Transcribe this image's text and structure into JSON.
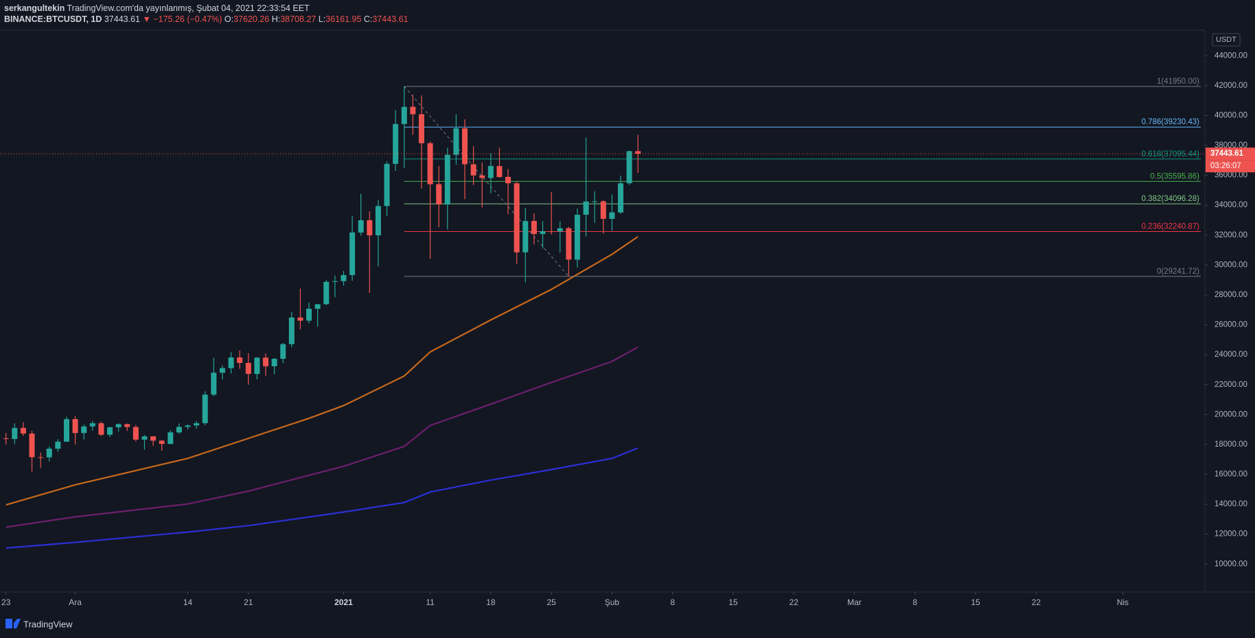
{
  "chart_data": {
    "type": "candlestick",
    "header": {
      "author": "serkangultekin",
      "published": "TradingView.com'da yayınlanmış, Şubat 04, 2021 22:33:54 EET",
      "symbol": "BINANCE:BTCUSDT, 1D",
      "change": "▼ −175.26 (−0.47%)",
      "open_label": "O:",
      "high_label": "H:",
      "low_label": "L:",
      "close_label": "C:"
    },
    "currency": "USDT",
    "countdown": "03:26:07",
    "brand": "TradingView",
    "up_color": "#26a69a",
    "down_color": "#ef5350",
    "categories": [
      "11-23",
      "11-24",
      "11-25",
      "11-26",
      "11-27",
      "11-28",
      "11-29",
      "11-30",
      "12-01",
      "12-02",
      "12-03",
      "12-04",
      "12-05",
      "12-06",
      "12-07",
      "12-08",
      "12-09",
      "12-10",
      "12-11",
      "12-12",
      "12-13",
      "12-14",
      "12-15",
      "12-16",
      "12-17",
      "12-18",
      "12-19",
      "12-20",
      "12-21",
      "12-22",
      "12-23",
      "12-24",
      "12-25",
      "12-26",
      "12-27",
      "12-28",
      "12-29",
      "12-30",
      "12-31",
      "01-01",
      "01-02",
      "01-03",
      "01-04",
      "01-05",
      "01-06",
      "01-07",
      "01-08",
      "01-09",
      "01-10",
      "01-11",
      "01-12",
      "01-13",
      "01-14",
      "01-15",
      "01-16",
      "01-17",
      "01-18",
      "01-19",
      "01-20",
      "01-21",
      "01-22",
      "01-23",
      "01-24",
      "01-25",
      "01-26",
      "01-27",
      "01-28",
      "01-29",
      "01-30",
      "01-31",
      "02-01",
      "02-02",
      "02-03",
      "02-04"
    ],
    "open": [
      18414,
      18364,
      19107,
      18729,
      17150,
      17139,
      17719,
      18185,
      19696,
      18764,
      19205,
      19422,
      18650,
      19148,
      19359,
      19166,
      18324,
      18541,
      18254,
      18036,
      18808,
      19175,
      19273,
      19426,
      21335,
      22797,
      23107,
      23821,
      23455,
      22719,
      23810,
      23232,
      23729,
      24712,
      26493,
      26281,
      27079,
      27385,
      28875,
      28923,
      29331,
      32176,
      33000,
      31989,
      33949,
      36769,
      39432,
      40586,
      40088,
      38150,
      35410,
      34049,
      37371,
      39145,
      36737,
      35995,
      35825,
      36622,
      35901,
      35468,
      30851,
      32950,
      32078,
      32259,
      32251,
      32464,
      30363,
      33368,
      34246,
      34262,
      33092,
      33518,
      35472,
      37620.26
    ],
    "high": [
      18773,
      19418,
      19484,
      18915,
      17457,
      17880,
      18360,
      19863,
      19888,
      19342,
      19566,
      19527,
      19177,
      19420,
      19400,
      19294,
      18639,
      18557,
      18292,
      18948,
      19411,
      19349,
      19570,
      21560,
      23800,
      23285,
      24171,
      24295,
      24102,
      23837,
      24100,
      23789,
      24789,
      26867,
      28422,
      27500,
      27380,
      28999,
      29300,
      29600,
      33300,
      34778,
      33600,
      34360,
      36939,
      40365,
      41950,
      41380,
      41350,
      38264,
      36628,
      37850,
      40100,
      39747,
      37950,
      36852,
      37469,
      37850,
      36415,
      35600,
      33826,
      33456,
      32944,
      34875,
      32921,
      32557,
      33783,
      38531,
      34933,
      34342,
      34717,
      35984,
      37662,
      38708.27
    ],
    "low": [
      18000,
      18018,
      18565,
      16188,
      16438,
      16865,
      17517,
      18185,
      18001,
      18330,
      18925,
      18565,
      18500,
      18857,
      18902,
      18200,
      17650,
      17911,
      17572,
      18020,
      18711,
      19000,
      19050,
      19278,
      21230,
      22350,
      22750,
      23060,
      22000,
      22353,
      22600,
      22703,
      23433,
      24500,
      25700,
      26101,
      25880,
      27320,
      27850,
      28624,
      28946,
      31963,
      28130,
      29900,
      33288,
      36300,
      36500,
      38720,
      35111,
      30420,
      32531,
      32380,
      36701,
      34408,
      35357,
      33850,
      34800,
      35844,
      33400,
      30071,
      28850,
      31390,
      31106,
      32053,
      30837,
      29241.72,
      29842,
      31915,
      32825,
      32114,
      32296,
      33418,
      35362,
      36161.95
    ],
    "close": [
      18364,
      19107,
      18732,
      17150,
      17139,
      17719,
      18185,
      19696,
      18764,
      19205,
      19422,
      18650,
      19148,
      19359,
      19166,
      18324,
      18541,
      18254,
      18036,
      18808,
      19175,
      19273,
      19426,
      21335,
      22797,
      23107,
      23821,
      23455,
      22719,
      23810,
      23232,
      23729,
      24712,
      26493,
      26281,
      27079,
      27385,
      28875,
      28923,
      29331,
      32178,
      33000,
      31988,
      33949,
      36769,
      39432,
      40582,
      40088,
      38150,
      35404,
      34051,
      37371,
      39144,
      36742,
      35994,
      35828,
      36631,
      35891,
      35468,
      30850,
      32945,
      32078,
      32259,
      32254,
      32467,
      30366,
      33364,
      34252,
      34262,
      33092,
      33526,
      35466,
      37618,
      37443.61
    ],
    "lines": [
      {
        "color": "#c8691c",
        "x": [
          "11-23",
          "12-01",
          "12-14",
          "12-21",
          "12-28",
          "01-01",
          "01-08",
          "01-11",
          "01-18",
          "01-25",
          "02-01",
          "02-04"
        ],
        "values": [
          13962,
          15300,
          17070,
          18410,
          19750,
          20600,
          22580,
          24190,
          26330,
          28370,
          30720,
          31900
        ]
      },
      {
        "color": "#6e1f6e",
        "x": [
          "11-23",
          "12-01",
          "12-14",
          "12-21",
          "01-01",
          "01-08",
          "01-11",
          "01-18",
          "01-25",
          "02-01",
          "02-04"
        ],
        "values": [
          12470,
          13160,
          14020,
          14880,
          16540,
          17870,
          19270,
          20700,
          22150,
          23550,
          24510
        ]
      },
      {
        "color": "#2b2fd6",
        "x": [
          "11-23",
          "12-01",
          "12-14",
          "12-21",
          "01-01",
          "01-08",
          "01-11",
          "01-18",
          "01-25",
          "02-01",
          "02-04"
        ],
        "values": [
          11070,
          11450,
          12140,
          12570,
          13480,
          14120,
          14820,
          15620,
          16320,
          17070,
          17760
        ]
      }
    ],
    "fib": {
      "from": "01-08",
      "to": "01-27",
      "levels": [
        {
          "price": 41950,
          "label": "1(41950.00)",
          "color": "#787b86"
        },
        {
          "price": 39230.43,
          "label": "0.786(39230.43)",
          "color": "#64b5f6"
        },
        {
          "price": 37095.44,
          "label": "0.618(37095.44)",
          "color": "#089981"
        },
        {
          "price": 35595.86,
          "label": "0.5(35595.86)",
          "color": "#4caf50"
        },
        {
          "price": 34096.28,
          "label": "0.382(34096.28)",
          "color": "#81c784"
        },
        {
          "price": 32240.87,
          "label": "0.236(32240.87)",
          "color": "#f23645"
        },
        {
          "price": 29241.72,
          "label": "0(29241.72)",
          "color": "#787b86"
        }
      ]
    },
    "ylim": [
      8130,
      45710
    ],
    "yticks": [
      {
        "value": 10000,
        "label": "10000.00"
      },
      {
        "value": 12000,
        "label": "12000.00"
      },
      {
        "value": 14000,
        "label": "14000.00"
      },
      {
        "value": 16000,
        "label": "16000.00"
      },
      {
        "value": 18000,
        "label": "18000.00"
      },
      {
        "value": 20000,
        "label": "20000.00"
      },
      {
        "value": 22000,
        "label": "22000.00"
      },
      {
        "value": 24000,
        "label": "24000.00"
      },
      {
        "value": 26000,
        "label": "26000.00"
      },
      {
        "value": 28000,
        "label": "28000.00"
      },
      {
        "value": 30000,
        "label": "30000.00"
      },
      {
        "value": 32000,
        "label": "32000.00"
      },
      {
        "value": 34000,
        "label": "34000.00"
      },
      {
        "value": 36000,
        "label": "36000.00"
      },
      {
        "value": 38000,
        "label": "38000.00"
      },
      {
        "value": 40000,
        "label": "40000.00"
      },
      {
        "value": 42000,
        "label": "42000.00"
      },
      {
        "value": 44000,
        "label": "44000.00"
      }
    ],
    "xticks": [
      {
        "value": "11-23",
        "label": "23"
      },
      {
        "value": "12-01",
        "label": "Ara"
      },
      {
        "value": "12-14",
        "label": "14"
      },
      {
        "value": "12-21",
        "label": "21"
      },
      {
        "value": "01-01",
        "label": "2021",
        "bold": true
      },
      {
        "value": "01-11",
        "label": "11"
      },
      {
        "value": "01-18",
        "label": "18"
      },
      {
        "value": "01-25",
        "label": "25"
      },
      {
        "value": "02-01",
        "label": "Şub"
      },
      {
        "value": "02-08",
        "label": "8"
      },
      {
        "value": "02-15",
        "label": "15"
      },
      {
        "value": "02-22",
        "label": "22"
      },
      {
        "value": "03-01",
        "label": "Mar"
      },
      {
        "value": "03-08",
        "label": "8"
      },
      {
        "value": "03-15",
        "label": "15"
      },
      {
        "value": "03-22",
        "label": "22"
      },
      {
        "value": "04-01",
        "label": "Nis"
      }
    ]
  }
}
